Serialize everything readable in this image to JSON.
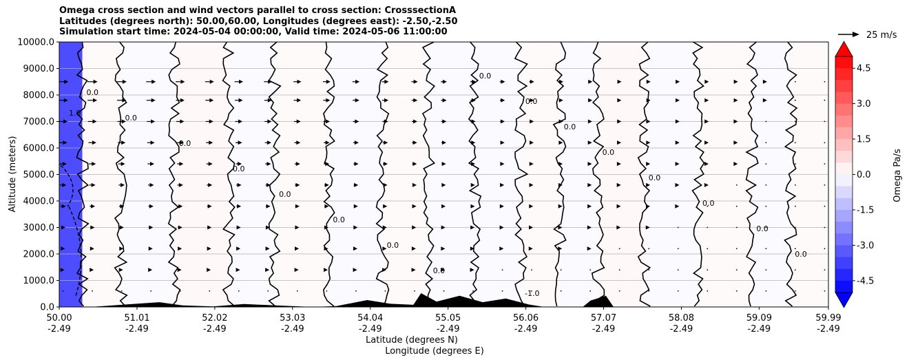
{
  "title_lines": [
    "Omega cross section and wind vectors parallel to cross section: CrosssectionA",
    "Latitudes (degrees north): 50.00,60.00, Longitudes (degrees east): -2.50,-2.50",
    "Simulation start time: 2024-05-04 00:00:00, Valid time: 2024-05-06 11:00:00"
  ],
  "chart_data": {
    "type": "heatmap",
    "ylabel": "Altitude (meters)",
    "xlabel_lines": [
      "Latitude (degrees N)",
      "Longitude (degrees E)"
    ],
    "y_ticks": [
      "0.0",
      "1000.0",
      "2000.0",
      "3000.0",
      "4000.0",
      "5000.0",
      "6000.0",
      "7000.0",
      "8000.0",
      "9000.0",
      "10000.0"
    ],
    "ylim": [
      0,
      10000
    ],
    "x_ticks": [
      {
        "lat": "50.00",
        "lon": "-2.49"
      },
      {
        "lat": "51.01",
        "lon": "-2.49"
      },
      {
        "lat": "52.02",
        "lon": "-2.49"
      },
      {
        "lat": "53.03",
        "lon": "-2.49"
      },
      {
        "lat": "54.04",
        "lon": "-2.49"
      },
      {
        "lat": "55.05",
        "lon": "-2.49"
      },
      {
        "lat": "56.06",
        "lon": "-2.49"
      },
      {
        "lat": "57.07",
        "lon": "-2.49"
      },
      {
        "lat": "58.08",
        "lon": "-2.49"
      },
      {
        "lat": "59.09",
        "lon": "-2.49"
      },
      {
        "lat": "59.99",
        "lon": "-2.49"
      }
    ],
    "xlim": [
      50.0,
      59.99
    ],
    "grid": "horizontal",
    "colorbar": {
      "label": "Omega Pa/s",
      "ticks": [
        "4.5",
        "3.0",
        "1.5",
        "0.0",
        "-1.5",
        "-3.0",
        "-4.5"
      ],
      "range": [
        -5.0,
        5.0
      ],
      "colormap": "bwr"
    },
    "vector_key": {
      "label": "25 m/s",
      "speed": 25
    },
    "contour_labels": [
      "0.0",
      "-1.0",
      "1.0"
    ],
    "omega_bands": [
      {
        "lat": 50.0,
        "omega": -3.5
      },
      {
        "lat": 50.3,
        "omega": 0.3
      },
      {
        "lat": 50.8,
        "omega": -0.3
      },
      {
        "lat": 51.5,
        "omega": 0.4
      },
      {
        "lat": 52.2,
        "omega": -0.3
      },
      {
        "lat": 52.8,
        "omega": 0.3
      },
      {
        "lat": 53.5,
        "omega": -0.3
      },
      {
        "lat": 54.2,
        "omega": 0.3
      },
      {
        "lat": 54.8,
        "omega": -0.3
      },
      {
        "lat": 55.4,
        "omega": -0.3
      },
      {
        "lat": 56.0,
        "omega": 0.3
      },
      {
        "lat": 56.5,
        "omega": -0.3
      },
      {
        "lat": 57.0,
        "omega": 0.4
      },
      {
        "lat": 57.6,
        "omega": -0.3
      },
      {
        "lat": 58.3,
        "omega": 0.3
      },
      {
        "lat": 59.0,
        "omega": -0.3
      },
      {
        "lat": 59.5,
        "omega": 0.3
      }
    ],
    "wind_rows_altitudes": [
      8500,
      7800,
      7000,
      6200,
      5400,
      4600,
      3800,
      3000,
      2200,
      1400,
      600
    ],
    "colors": {
      "positive": "#ff0000",
      "negative": "#0000ff",
      "terrain": "#000000",
      "grid": "#b0b0b0"
    }
  }
}
